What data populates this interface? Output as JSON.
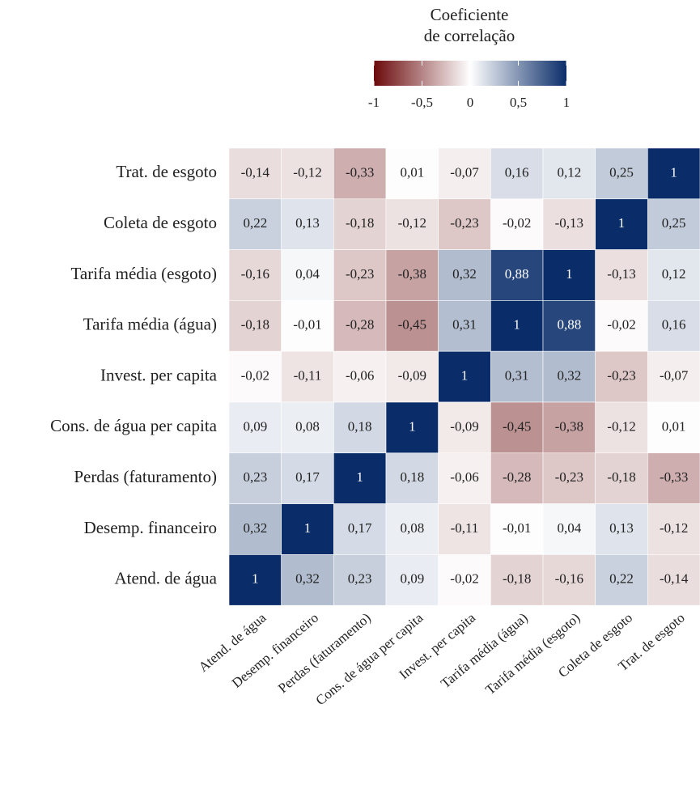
{
  "chart_data": {
    "type": "heatmap",
    "x_categories": [
      "Atend. de água",
      "Desemp. financeiro",
      "Perdas (faturamento)",
      "Cons. de água per capita",
      "Invest. per capita",
      "Tarifa média (água)",
      "Tarifa média (esgoto)",
      "Coleta de esgoto",
      "Trat. de esgoto"
    ],
    "y_categories": [
      "Trat. de esgoto",
      "Coleta de esgoto",
      "Tarifa média (esgoto)",
      "Tarifa média (água)",
      "Invest. per capita",
      "Cons. de água per capita",
      "Perdas (faturamento)",
      "Desemp. financeiro",
      "Atend. de água"
    ],
    "values": [
      [
        -0.14,
        -0.12,
        -0.33,
        0.01,
        -0.07,
        0.16,
        0.12,
        0.25,
        1
      ],
      [
        0.22,
        0.13,
        -0.18,
        -0.12,
        -0.23,
        -0.02,
        -0.13,
        1,
        0.25
      ],
      [
        -0.16,
        0.04,
        -0.23,
        -0.38,
        0.32,
        0.88,
        1,
        -0.13,
        0.12
      ],
      [
        -0.18,
        -0.01,
        -0.28,
        -0.45,
        0.31,
        1,
        0.88,
        -0.02,
        0.16
      ],
      [
        -0.02,
        -0.11,
        -0.06,
        -0.09,
        1,
        0.31,
        0.32,
        -0.23,
        -0.07
      ],
      [
        0.09,
        0.08,
        0.18,
        1,
        -0.09,
        -0.45,
        -0.38,
        -0.12,
        0.01
      ],
      [
        0.23,
        0.17,
        1,
        0.18,
        -0.06,
        -0.28,
        -0.23,
        -0.18,
        -0.33
      ],
      [
        0.32,
        1,
        0.17,
        0.08,
        -0.11,
        -0.01,
        0.04,
        0.13,
        -0.12
      ],
      [
        1,
        0.32,
        0.23,
        0.09,
        -0.02,
        -0.18,
        -0.16,
        0.22,
        -0.14
      ]
    ],
    "value_labels": [
      [
        "-0,14",
        "-0,12",
        "-0,33",
        "0,01",
        "-0,07",
        "0,16",
        "0,12",
        "0,25",
        "1"
      ],
      [
        "0,22",
        "0,13",
        "-0,18",
        "-0,12",
        "-0,23",
        "-0,02",
        "-0,13",
        "1",
        "0,25"
      ],
      [
        "-0,16",
        "0,04",
        "-0,23",
        "-0,38",
        "0,32",
        "0,88",
        "1",
        "-0,13",
        "0,12"
      ],
      [
        "-0,18",
        "-0,01",
        "-0,28",
        "-0,45",
        "0,31",
        "1",
        "0,88",
        "-0,02",
        "0,16"
      ],
      [
        "-0,02",
        "-0,11",
        "-0,06",
        "-0,09",
        "1",
        "0,31",
        "0,32",
        "-0,23",
        "-0,07"
      ],
      [
        "0,09",
        "0,08",
        "0,18",
        "1",
        "-0,09",
        "-0,45",
        "-0,38",
        "-0,12",
        "0,01"
      ],
      [
        "0,23",
        "0,17",
        "1",
        "0,18",
        "-0,06",
        "-0,28",
        "-0,23",
        "-0,18",
        "-0,33"
      ],
      [
        "0,32",
        "1",
        "0,17",
        "0,08",
        "-0,11",
        "-0,01",
        "0,04",
        "0,13",
        "-0,12"
      ],
      [
        "1",
        "0,32",
        "0,23",
        "0,09",
        "-0,02",
        "-0,18",
        "-0,16",
        "0,22",
        "-0,14"
      ]
    ],
    "colorbar": {
      "title": [
        "Coeficiente",
        "de correlação"
      ],
      "lim": [
        -1,
        1
      ],
      "ticks": [
        -1,
        {
          "value": -0.5,
          "label": "-0,5"
        },
        0,
        {
          "value": 0.5,
          "label": "0,5"
        },
        1
      ],
      "colors": [
        "#6b0a0c",
        "#ffffff",
        "#0a2d69"
      ]
    }
  }
}
